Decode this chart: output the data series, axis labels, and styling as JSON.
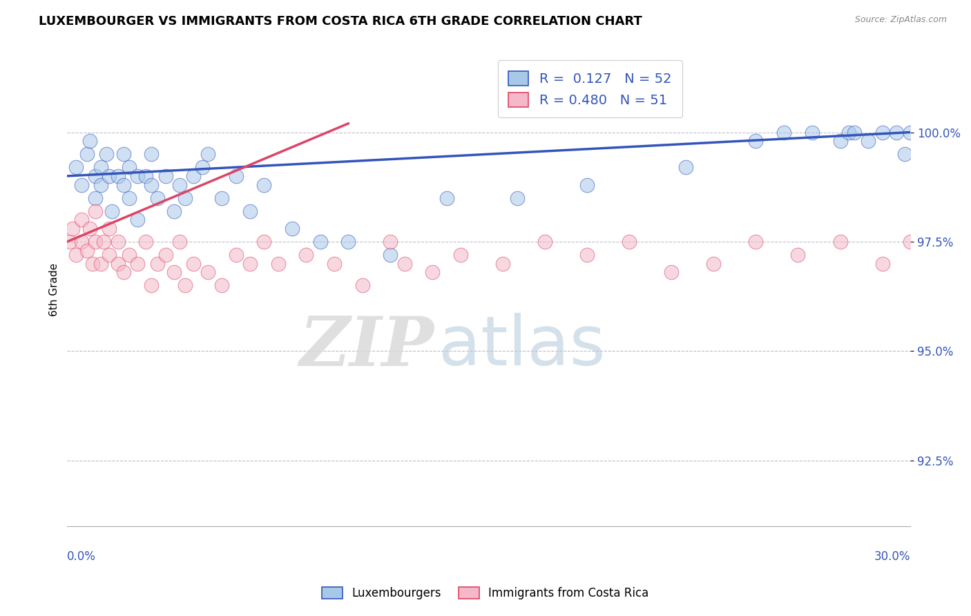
{
  "title": "LUXEMBOURGER VS IMMIGRANTS FROM COSTA RICA 6TH GRADE CORRELATION CHART",
  "source_text": "Source: ZipAtlas.com",
  "ylabel": "6th Grade",
  "xmin": 0.0,
  "xmax": 30.0,
  "ymin": 91.0,
  "ymax": 101.8,
  "yticks": [
    92.5,
    95.0,
    97.5,
    100.0
  ],
  "ytick_labels": [
    "92.5%",
    "95.0%",
    "97.5%",
    "100.0%"
  ],
  "blue_color": "#a8c8e8",
  "pink_color": "#f4b8c8",
  "blue_line_color": "#3355bb",
  "pink_line_color": "#dd4466",
  "legend_R_blue": "0.127",
  "legend_N_blue": "52",
  "legend_R_pink": "0.480",
  "legend_N_pink": "51",
  "legend_label_blue": "Luxembourgers",
  "legend_label_pink": "Immigrants from Costa Rica",
  "watermark_zip": "ZIP",
  "watermark_atlas": "atlas",
  "blue_scatter_x": [
    0.3,
    0.5,
    0.7,
    0.8,
    1.0,
    1.0,
    1.2,
    1.2,
    1.4,
    1.5,
    1.6,
    1.8,
    2.0,
    2.0,
    2.2,
    2.2,
    2.5,
    2.5,
    2.8,
    3.0,
    3.0,
    3.2,
    3.5,
    3.8,
    4.0,
    4.2,
    4.5,
    4.8,
    5.0,
    5.5,
    6.0,
    6.5,
    7.0,
    8.0,
    9.0,
    10.0,
    11.5,
    13.5,
    16.0,
    18.5,
    22.0,
    24.5,
    25.5,
    26.5,
    27.5,
    27.8,
    28.0,
    28.5,
    29.0,
    29.5,
    29.8,
    30.0
  ],
  "blue_scatter_y": [
    99.2,
    98.8,
    99.5,
    99.8,
    98.5,
    99.0,
    99.2,
    98.8,
    99.5,
    99.0,
    98.2,
    99.0,
    98.8,
    99.5,
    99.2,
    98.5,
    99.0,
    98.0,
    99.0,
    98.8,
    99.5,
    98.5,
    99.0,
    98.2,
    98.8,
    98.5,
    99.0,
    99.2,
    99.5,
    98.5,
    99.0,
    98.2,
    98.8,
    97.8,
    97.5,
    97.5,
    97.2,
    98.5,
    98.5,
    98.8,
    99.2,
    99.8,
    100.0,
    100.0,
    99.8,
    100.0,
    100.0,
    99.8,
    100.0,
    100.0,
    99.5,
    100.0
  ],
  "pink_scatter_x": [
    0.1,
    0.2,
    0.3,
    0.5,
    0.5,
    0.7,
    0.8,
    0.9,
    1.0,
    1.0,
    1.2,
    1.3,
    1.5,
    1.5,
    1.8,
    1.8,
    2.0,
    2.2,
    2.5,
    2.8,
    3.0,
    3.2,
    3.5,
    3.8,
    4.0,
    4.2,
    4.5,
    5.0,
    5.5,
    6.0,
    6.5,
    7.0,
    7.5,
    8.5,
    9.5,
    10.5,
    11.5,
    12.0,
    13.0,
    14.0,
    15.5,
    17.0,
    18.5,
    20.0,
    21.5,
    23.0,
    24.5,
    26.0,
    27.5,
    29.0,
    30.0
  ],
  "pink_scatter_y": [
    97.5,
    97.8,
    97.2,
    97.5,
    98.0,
    97.3,
    97.8,
    97.0,
    97.5,
    98.2,
    97.0,
    97.5,
    97.8,
    97.2,
    97.0,
    97.5,
    96.8,
    97.2,
    97.0,
    97.5,
    96.5,
    97.0,
    97.2,
    96.8,
    97.5,
    96.5,
    97.0,
    96.8,
    96.5,
    97.2,
    97.0,
    97.5,
    97.0,
    97.2,
    97.0,
    96.5,
    97.5,
    97.0,
    96.8,
    97.2,
    97.0,
    97.5,
    97.2,
    97.5,
    96.8,
    97.0,
    97.5,
    97.2,
    97.5,
    97.0,
    97.5
  ],
  "blue_trend_x": [
    0.0,
    30.0
  ],
  "blue_trend_y": [
    99.0,
    100.0
  ],
  "pink_trend_x": [
    0.0,
    10.0
  ],
  "pink_trend_y": [
    97.5,
    100.2
  ]
}
